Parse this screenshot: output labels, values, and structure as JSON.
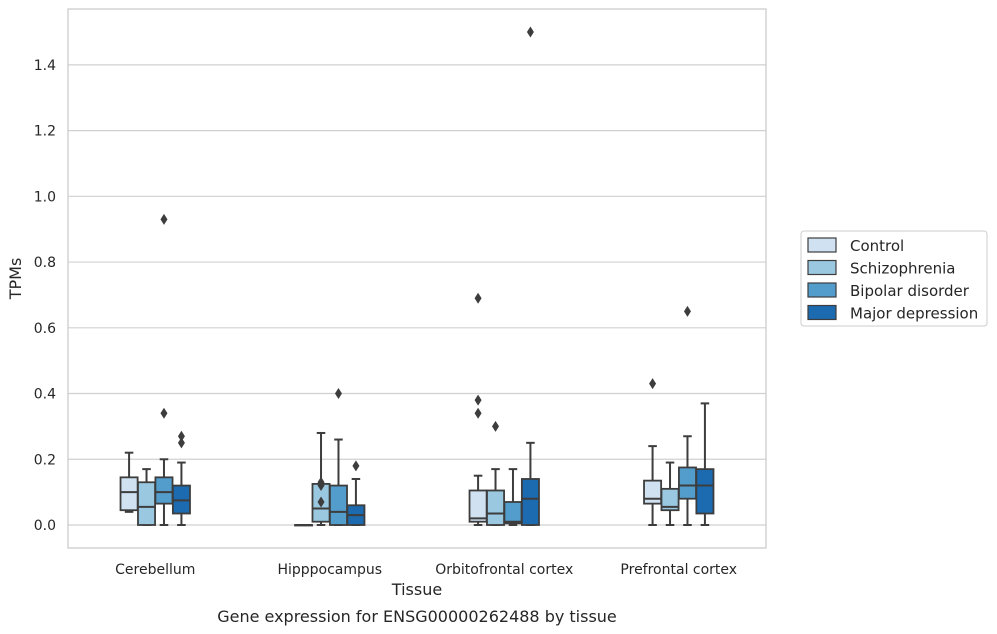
{
  "chart_data": {
    "type": "box",
    "title": "Gene expression for ENSG00000262488 by tissue",
    "xlabel": "Tissue",
    "ylabel": "TPMs",
    "ylim": [
      -0.07,
      1.57
    ],
    "yticks": [
      0.0,
      0.2,
      0.4,
      0.6,
      0.8,
      1.0,
      1.2,
      1.4
    ],
    "ytick_labels": [
      "0.0",
      "0.2",
      "0.4",
      "0.6",
      "0.8",
      "1.0",
      "1.2",
      "1.4"
    ],
    "grid": true,
    "legend_position": "right",
    "categories": [
      "Cerebellum",
      "Hipppocampus",
      "Orbitofrontal cortex",
      "Prefrontal cortex"
    ],
    "series": [
      {
        "name": "Control",
        "color": "#d0e2f2",
        "boxes": [
          {
            "whislo": 0.04,
            "q1": 0.045,
            "med": 0.1,
            "q3": 0.145,
            "whishi": 0.22,
            "fliers": []
          },
          {
            "whislo": 0.0,
            "q1": 0.0,
            "med": 0.0,
            "q3": 0.0,
            "whishi": 0.0,
            "fliers": []
          },
          {
            "whislo": 0.0,
            "q1": 0.01,
            "med": 0.02,
            "q3": 0.105,
            "whishi": 0.15,
            "fliers": [
              0.34,
              0.38,
              0.69
            ]
          },
          {
            "whislo": 0.0,
            "q1": 0.065,
            "med": 0.08,
            "q3": 0.135,
            "whishi": 0.24,
            "fliers": [
              0.43
            ]
          }
        ]
      },
      {
        "name": "Schizophrenia",
        "color": "#9ac8e0",
        "boxes": [
          {
            "whislo": 0.0,
            "q1": 0.0,
            "med": 0.055,
            "q3": 0.13,
            "whishi": 0.17,
            "fliers": []
          },
          {
            "whislo": 0.0,
            "q1": 0.01,
            "med": 0.05,
            "q3": 0.125,
            "whishi": 0.28,
            "fliers": [
              0.07,
              0.12,
              0.13
            ]
          },
          {
            "whislo": 0.0,
            "q1": 0.0,
            "med": 0.035,
            "q3": 0.105,
            "whishi": 0.17,
            "fliers": [
              0.3
            ]
          },
          {
            "whislo": 0.0,
            "q1": 0.045,
            "med": 0.055,
            "q3": 0.11,
            "whishi": 0.19,
            "fliers": []
          }
        ]
      },
      {
        "name": "Bipolar disorder",
        "color": "#529dcc",
        "boxes": [
          {
            "whislo": 0.0,
            "q1": 0.065,
            "med": 0.1,
            "q3": 0.145,
            "whishi": 0.2,
            "fliers": [
              0.34,
              0.93
            ]
          },
          {
            "whislo": 0.0,
            "q1": 0.0,
            "med": 0.04,
            "q3": 0.12,
            "whishi": 0.26,
            "fliers": [
              0.4
            ]
          },
          {
            "whislo": 0.0,
            "q1": 0.005,
            "med": 0.01,
            "q3": 0.07,
            "whishi": 0.17,
            "fliers": []
          },
          {
            "whislo": 0.0,
            "q1": 0.08,
            "med": 0.12,
            "q3": 0.175,
            "whishi": 0.27,
            "fliers": [
              0.65
            ]
          }
        ]
      },
      {
        "name": "Major depression",
        "color": "#1c6aaf",
        "boxes": [
          {
            "whislo": 0.0,
            "q1": 0.035,
            "med": 0.075,
            "q3": 0.12,
            "whishi": 0.19,
            "fliers": [
              0.25,
              0.27
            ]
          },
          {
            "whislo": 0.0,
            "q1": 0.0,
            "med": 0.03,
            "q3": 0.06,
            "whishi": 0.14,
            "fliers": [
              0.18
            ]
          },
          {
            "whislo": 0.0,
            "q1": 0.0,
            "med": 0.08,
            "q3": 0.14,
            "whishi": 0.25,
            "fliers": [
              1.5
            ]
          },
          {
            "whislo": 0.0,
            "q1": 0.035,
            "med": 0.12,
            "q3": 0.17,
            "whishi": 0.37,
            "fliers": []
          }
        ]
      }
    ]
  }
}
